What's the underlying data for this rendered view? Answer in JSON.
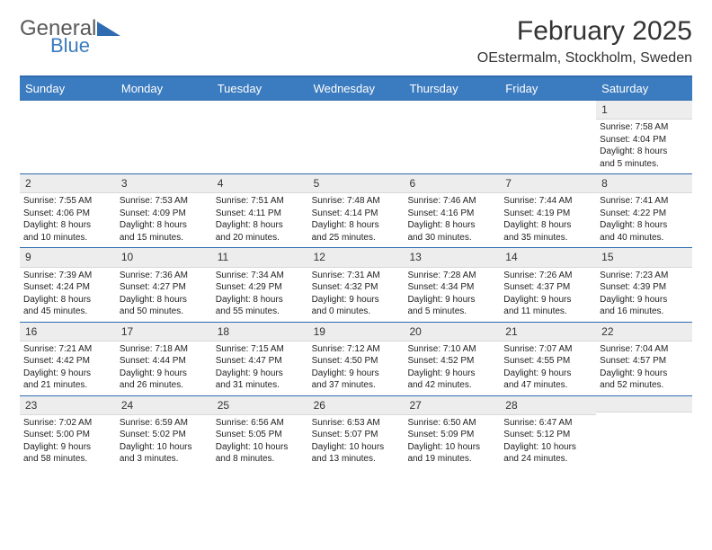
{
  "logo": {
    "general": "General",
    "blue": "Blue"
  },
  "header": {
    "month_title": "February 2025",
    "location": "OEstermalm, Stockholm, Sweden"
  },
  "weekdays": [
    "Sunday",
    "Monday",
    "Tuesday",
    "Wednesday",
    "Thursday",
    "Friday",
    "Saturday"
  ],
  "colors": {
    "header_bar": "#3b7bbf",
    "border": "#2e6bb0",
    "daynum_bg": "#ededed",
    "text": "#222222"
  },
  "weeks": [
    [
      null,
      null,
      null,
      null,
      null,
      null,
      {
        "n": "1",
        "sunrise": "Sunrise: 7:58 AM",
        "sunset": "Sunset: 4:04 PM",
        "daylight1": "Daylight: 8 hours",
        "daylight2": "and 5 minutes."
      }
    ],
    [
      {
        "n": "2",
        "sunrise": "Sunrise: 7:55 AM",
        "sunset": "Sunset: 4:06 PM",
        "daylight1": "Daylight: 8 hours",
        "daylight2": "and 10 minutes."
      },
      {
        "n": "3",
        "sunrise": "Sunrise: 7:53 AM",
        "sunset": "Sunset: 4:09 PM",
        "daylight1": "Daylight: 8 hours",
        "daylight2": "and 15 minutes."
      },
      {
        "n": "4",
        "sunrise": "Sunrise: 7:51 AM",
        "sunset": "Sunset: 4:11 PM",
        "daylight1": "Daylight: 8 hours",
        "daylight2": "and 20 minutes."
      },
      {
        "n": "5",
        "sunrise": "Sunrise: 7:48 AM",
        "sunset": "Sunset: 4:14 PM",
        "daylight1": "Daylight: 8 hours",
        "daylight2": "and 25 minutes."
      },
      {
        "n": "6",
        "sunrise": "Sunrise: 7:46 AM",
        "sunset": "Sunset: 4:16 PM",
        "daylight1": "Daylight: 8 hours",
        "daylight2": "and 30 minutes."
      },
      {
        "n": "7",
        "sunrise": "Sunrise: 7:44 AM",
        "sunset": "Sunset: 4:19 PM",
        "daylight1": "Daylight: 8 hours",
        "daylight2": "and 35 minutes."
      },
      {
        "n": "8",
        "sunrise": "Sunrise: 7:41 AM",
        "sunset": "Sunset: 4:22 PM",
        "daylight1": "Daylight: 8 hours",
        "daylight2": "and 40 minutes."
      }
    ],
    [
      {
        "n": "9",
        "sunrise": "Sunrise: 7:39 AM",
        "sunset": "Sunset: 4:24 PM",
        "daylight1": "Daylight: 8 hours",
        "daylight2": "and 45 minutes."
      },
      {
        "n": "10",
        "sunrise": "Sunrise: 7:36 AM",
        "sunset": "Sunset: 4:27 PM",
        "daylight1": "Daylight: 8 hours",
        "daylight2": "and 50 minutes."
      },
      {
        "n": "11",
        "sunrise": "Sunrise: 7:34 AM",
        "sunset": "Sunset: 4:29 PM",
        "daylight1": "Daylight: 8 hours",
        "daylight2": "and 55 minutes."
      },
      {
        "n": "12",
        "sunrise": "Sunrise: 7:31 AM",
        "sunset": "Sunset: 4:32 PM",
        "daylight1": "Daylight: 9 hours",
        "daylight2": "and 0 minutes."
      },
      {
        "n": "13",
        "sunrise": "Sunrise: 7:28 AM",
        "sunset": "Sunset: 4:34 PM",
        "daylight1": "Daylight: 9 hours",
        "daylight2": "and 5 minutes."
      },
      {
        "n": "14",
        "sunrise": "Sunrise: 7:26 AM",
        "sunset": "Sunset: 4:37 PM",
        "daylight1": "Daylight: 9 hours",
        "daylight2": "and 11 minutes."
      },
      {
        "n": "15",
        "sunrise": "Sunrise: 7:23 AM",
        "sunset": "Sunset: 4:39 PM",
        "daylight1": "Daylight: 9 hours",
        "daylight2": "and 16 minutes."
      }
    ],
    [
      {
        "n": "16",
        "sunrise": "Sunrise: 7:21 AM",
        "sunset": "Sunset: 4:42 PM",
        "daylight1": "Daylight: 9 hours",
        "daylight2": "and 21 minutes."
      },
      {
        "n": "17",
        "sunrise": "Sunrise: 7:18 AM",
        "sunset": "Sunset: 4:44 PM",
        "daylight1": "Daylight: 9 hours",
        "daylight2": "and 26 minutes."
      },
      {
        "n": "18",
        "sunrise": "Sunrise: 7:15 AM",
        "sunset": "Sunset: 4:47 PM",
        "daylight1": "Daylight: 9 hours",
        "daylight2": "and 31 minutes."
      },
      {
        "n": "19",
        "sunrise": "Sunrise: 7:12 AM",
        "sunset": "Sunset: 4:50 PM",
        "daylight1": "Daylight: 9 hours",
        "daylight2": "and 37 minutes."
      },
      {
        "n": "20",
        "sunrise": "Sunrise: 7:10 AM",
        "sunset": "Sunset: 4:52 PM",
        "daylight1": "Daylight: 9 hours",
        "daylight2": "and 42 minutes."
      },
      {
        "n": "21",
        "sunrise": "Sunrise: 7:07 AM",
        "sunset": "Sunset: 4:55 PM",
        "daylight1": "Daylight: 9 hours",
        "daylight2": "and 47 minutes."
      },
      {
        "n": "22",
        "sunrise": "Sunrise: 7:04 AM",
        "sunset": "Sunset: 4:57 PM",
        "daylight1": "Daylight: 9 hours",
        "daylight2": "and 52 minutes."
      }
    ],
    [
      {
        "n": "23",
        "sunrise": "Sunrise: 7:02 AM",
        "sunset": "Sunset: 5:00 PM",
        "daylight1": "Daylight: 9 hours",
        "daylight2": "and 58 minutes."
      },
      {
        "n": "24",
        "sunrise": "Sunrise: 6:59 AM",
        "sunset": "Sunset: 5:02 PM",
        "daylight1": "Daylight: 10 hours",
        "daylight2": "and 3 minutes."
      },
      {
        "n": "25",
        "sunrise": "Sunrise: 6:56 AM",
        "sunset": "Sunset: 5:05 PM",
        "daylight1": "Daylight: 10 hours",
        "daylight2": "and 8 minutes."
      },
      {
        "n": "26",
        "sunrise": "Sunrise: 6:53 AM",
        "sunset": "Sunset: 5:07 PM",
        "daylight1": "Daylight: 10 hours",
        "daylight2": "and 13 minutes."
      },
      {
        "n": "27",
        "sunrise": "Sunrise: 6:50 AM",
        "sunset": "Sunset: 5:09 PM",
        "daylight1": "Daylight: 10 hours",
        "daylight2": "and 19 minutes."
      },
      {
        "n": "28",
        "sunrise": "Sunrise: 6:47 AM",
        "sunset": "Sunset: 5:12 PM",
        "daylight1": "Daylight: 10 hours",
        "daylight2": "and 24 minutes."
      },
      null
    ]
  ]
}
